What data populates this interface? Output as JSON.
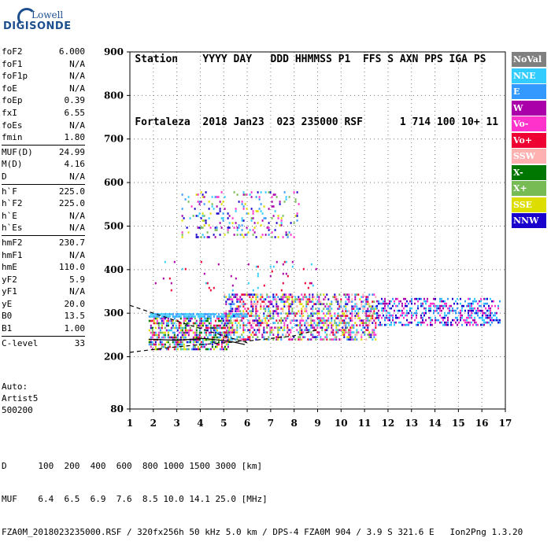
{
  "logo": {
    "line1": "Lowell",
    "line2": "DIGISONDE"
  },
  "header": {
    "row1": [
      "Station",
      "YYYY DAY",
      "DDD HHMMSS P1",
      "FFS S AXN PPS IGA PS"
    ],
    "row2": [
      "Fortaleza",
      "2018 Jan23",
      "023 235000 RSF",
      "1 714 100 10+ 11"
    ]
  },
  "params": {
    "group1": [
      {
        "label": "foF2",
        "value": "6.000"
      },
      {
        "label": "foF1",
        "value": "N/A"
      },
      {
        "label": "foF1p",
        "value": "N/A"
      },
      {
        "label": "foE",
        "value": "N/A"
      },
      {
        "label": "foEp",
        "value": "0.39"
      },
      {
        "label": "fxI",
        "value": "6.55"
      },
      {
        "label": "foEs",
        "value": "N/A"
      },
      {
        "label": "fmin",
        "value": "1.80"
      }
    ],
    "group2": [
      {
        "label": "MUF(D)",
        "value": "24.99"
      },
      {
        "label": "M(D)",
        "value": "4.16"
      },
      {
        "label": "D",
        "value": "N/A"
      }
    ],
    "group3": [
      {
        "label": "h`F",
        "value": "225.0"
      },
      {
        "label": "h`F2",
        "value": "225.0"
      },
      {
        "label": "h`E",
        "value": "N/A"
      },
      {
        "label": "h`Es",
        "value": "N/A"
      }
    ],
    "group4": [
      {
        "label": "hmF2",
        "value": "230.7"
      },
      {
        "label": "hmF1",
        "value": "N/A"
      },
      {
        "label": "hmE",
        "value": "110.0"
      },
      {
        "label": "yF2",
        "value": "5.9"
      },
      {
        "label": "yF1",
        "value": "N/A"
      },
      {
        "label": "yE",
        "value": "20.0"
      },
      {
        "label": "B0",
        "value": "13.5"
      },
      {
        "label": "B1",
        "value": "1.00"
      }
    ],
    "group5": [
      {
        "label": "C-level",
        "value": "33"
      }
    ]
  },
  "auto": {
    "line1": "Auto:",
    "line2": "Artist5",
    "line3": "500200"
  },
  "legend": [
    {
      "label": "NoVal",
      "color": "#808080"
    },
    {
      "label": "NNE",
      "color": "#33ccff"
    },
    {
      "label": "E",
      "color": "#3399ff"
    },
    {
      "label": "W",
      "color": "#aa00aa"
    },
    {
      "label": "Vo-",
      "color": "#ff33cc"
    },
    {
      "label": "Vo+",
      "color": "#ee0033"
    },
    {
      "label": "SSW",
      "color": "#ffb0b0"
    },
    {
      "label": "X-",
      "color": "#007700"
    },
    {
      "label": "X+",
      "color": "#77bb55"
    },
    {
      "label": "SSE",
      "color": "#dddd00"
    },
    {
      "label": "NNW",
      "color": "#1a00cc"
    }
  ],
  "footer": {
    "d_label": "D",
    "d_values": "100  200  400  600  800 1000 1500 3000 [km]",
    "muf_label": "MUF",
    "muf_values": "6.4  6.5  6.9  7.6  8.5 10.0 14.1 25.0 [MHz]",
    "file_line": "FZA0M_2018023235000.RSF / 320fx256h 50 kHz 5.0 km / DPS-4 FZA0M 904 / 3.9 S 321.6 E   Ion2Png 1.3.20"
  },
  "chart_data": {
    "type": "scatter",
    "title": "",
    "xlabel": "",
    "ylabel": "",
    "xlim": [
      1,
      17
    ],
    "ylim": [
      80,
      900
    ],
    "x_ticks": [
      1,
      2,
      3,
      4,
      5,
      6,
      7,
      8,
      9,
      10,
      11,
      12,
      13,
      14,
      15,
      16,
      17
    ],
    "y_ticks": [
      80,
      200,
      300,
      400,
      500,
      600,
      700,
      800,
      900
    ],
    "grid": "dotted",
    "legend_position": "right",
    "regions": [
      {
        "name": "F-trace low band",
        "x_range": [
          1.8,
          5.2
        ],
        "y_range": [
          215,
          290
        ],
        "colors": [
          "#33ccff",
          "#3399ff",
          "#aa00aa",
          "#ff33cc",
          "#ee0033",
          "#007700",
          "#77bb55",
          "#dddd00",
          "#1a00cc"
        ],
        "density": 0.6
      },
      {
        "name": "F-trace upper edge",
        "x_range": [
          1.8,
          6.0
        ],
        "y_range": [
          288,
          300
        ],
        "colors": [
          "#33ccff",
          "#3399ff"
        ],
        "density": 0.9
      },
      {
        "name": "F-trace mid band",
        "x_range": [
          5.0,
          11.5
        ],
        "y_range": [
          235,
          345
        ],
        "colors": [
          "#33ccff",
          "#3399ff",
          "#aa00aa",
          "#ff33cc",
          "#ee0033",
          "#dddd00",
          "#ffb0b0",
          "#1a00cc",
          "#77bb55"
        ],
        "density": 0.5
      },
      {
        "name": "spread-F band",
        "x_range": [
          11.5,
          16.8
        ],
        "y_range": [
          270,
          335
        ],
        "colors": [
          "#1a00cc",
          "#3399ff",
          "#aa00aa",
          "#ff33cc",
          "#33ccff"
        ],
        "density": 0.45
      },
      {
        "name": "second hop",
        "x_range": [
          3.2,
          8.2
        ],
        "y_range": [
          470,
          580
        ],
        "colors": [
          "#33ccff",
          "#dddd00",
          "#3399ff",
          "#aa00aa",
          "#ff33cc",
          "#77bb55",
          "#1a00cc"
        ],
        "density": 0.15
      },
      {
        "name": "sparse points",
        "x_range": [
          2,
          9
        ],
        "y_range": [
          350,
          420
        ],
        "colors": [
          "#33ccff",
          "#ee0033",
          "#aa00aa"
        ],
        "density": 0.03
      }
    ],
    "fit_lines": [
      {
        "name": "trace-fit",
        "color": "#000000",
        "style": "solid",
        "points": [
          [
            1.8,
            240
          ],
          [
            3.0,
            238
          ],
          [
            4.2,
            242
          ],
          [
            5.3,
            235
          ],
          [
            5.9,
            228
          ]
        ]
      },
      {
        "name": "trace-fit-dashed-lower",
        "color": "#000000",
        "style": "dashed",
        "points": [
          [
            1,
            210
          ],
          [
            2.5,
            220
          ],
          [
            4,
            228
          ],
          [
            6,
            236
          ],
          [
            8,
            248
          ],
          [
            9,
            262
          ]
        ]
      },
      {
        "name": "trace-fit-dashed-upper",
        "color": "#000000",
        "style": "dashed",
        "points": [
          [
            1,
            318
          ],
          [
            2,
            300
          ],
          [
            3,
            282
          ],
          [
            4,
            265
          ],
          [
            5,
            248
          ],
          [
            6,
            232
          ]
        ]
      }
    ]
  }
}
